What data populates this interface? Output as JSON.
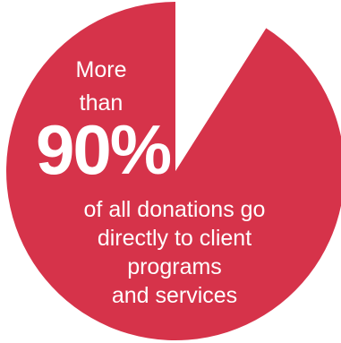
{
  "chart_data": {
    "type": "pie",
    "slices": [
      {
        "label": "client programs and services",
        "value": 91,
        "color": "#d6334a"
      },
      {
        "label": "",
        "value": 9,
        "color": "#ffffff"
      }
    ]
  },
  "callout": {
    "prefix_line_1": "More",
    "prefix_line_2": "than",
    "value": "90%",
    "caption_lines": [
      "of all donations go",
      "directly to client",
      "programs",
      "and services"
    ]
  }
}
